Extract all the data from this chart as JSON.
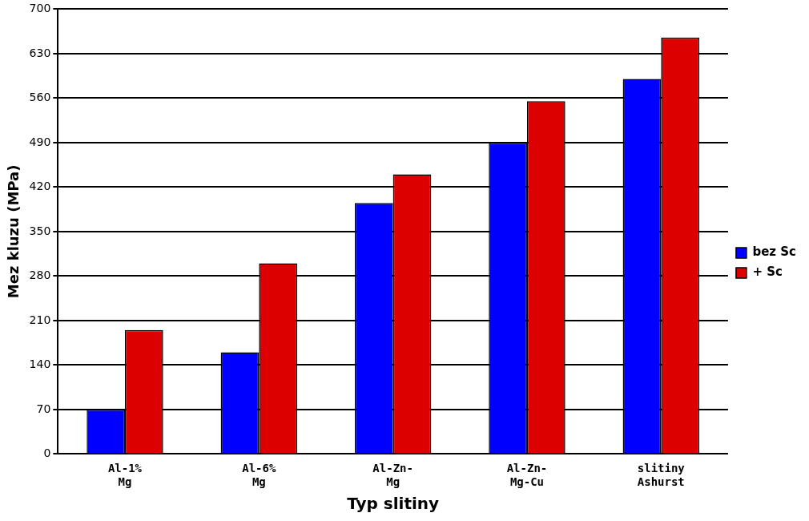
{
  "chart_data": {
    "type": "bar",
    "xlabel": "Typ slitiny",
    "ylabel": "Mez kluzu (MPa)",
    "categories": [
      [
        "Al-1%",
        "Mg"
      ],
      [
        "Al-6%",
        "Mg"
      ],
      [
        "Al-Zn-",
        "Mg"
      ],
      [
        "Al-Zn-",
        "Mg-Cu"
      ],
      [
        "slitiny",
        "Ashurst"
      ]
    ],
    "series": [
      {
        "name": "bez Sc",
        "color": "#0000ff",
        "values": [
          70,
          160,
          395,
          490,
          590
        ]
      },
      {
        "name": "+ Sc",
        "color": "#dd0000",
        "values": [
          195,
          300,
          440,
          555,
          655
        ]
      }
    ],
    "ylim": [
      0,
      700
    ],
    "yticks": [
      0,
      70,
      140,
      210,
      280,
      350,
      420,
      490,
      560,
      630,
      700
    ],
    "grid": "y",
    "legend": "right"
  }
}
